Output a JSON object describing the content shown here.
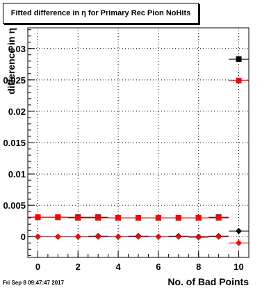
{
  "chart_data": {
    "type": "scatter",
    "title": "Fitted difference in  η for Primary Rec Pion NoHits",
    "xlabel": "No. of Bad Points",
    "ylabel": "difference in η",
    "xlim": [
      -0.5,
      10.5
    ],
    "ylim": [
      -0.0033,
      0.0333
    ],
    "grid": true,
    "x_ticks": [
      "0",
      "2",
      "4",
      "6",
      "8",
      "10"
    ],
    "y_ticks": [
      "0",
      "0.005",
      "0.01",
      "0.015",
      "0.02",
      "0.025",
      "0.03"
    ],
    "y_tick_values": [
      0,
      0.005,
      0.01,
      0.015,
      0.02,
      0.025,
      0.03
    ],
    "series": [
      {
        "color": "#000000",
        "marker": "square",
        "x": [
          0,
          1,
          2,
          3,
          4,
          5,
          6,
          7,
          8,
          9,
          10
        ],
        "y": [
          0.0031,
          0.0031,
          0.0031,
          0.0031,
          0.003,
          0.003,
          0.003,
          0.003,
          0.003,
          0.0031,
          0.0283
        ]
      },
      {
        "color": "#ff0000",
        "marker": "square",
        "x": [
          0,
          1,
          2,
          3,
          4,
          5,
          6,
          7,
          8,
          9,
          10
        ],
        "y": [
          0.0031,
          0.0031,
          0.003,
          0.003,
          0.003,
          0.003,
          0.003,
          0.003,
          0.003,
          0.003,
          0.0249
        ]
      },
      {
        "color": "#000000",
        "marker": "diamond",
        "x": [
          0,
          1,
          2,
          3,
          4,
          5,
          6,
          7,
          8,
          9,
          10
        ],
        "y": [
          0.0,
          0.0,
          0.0,
          0.0001,
          0.0,
          0.0001,
          0.0,
          0.0001,
          0.0,
          0.0001,
          0.0009
        ]
      },
      {
        "color": "#ff0000",
        "marker": "diamond",
        "x": [
          0,
          1,
          2,
          3,
          4,
          5,
          6,
          7,
          8,
          9,
          10
        ],
        "y": [
          0.0,
          0.0,
          0.0,
          0.0,
          0.0,
          0.0,
          0.0,
          0.0,
          -0.0001,
          0.0,
          -0.001
        ]
      }
    ]
  },
  "footer": "Fri Sep  8 09:47:47 2017"
}
